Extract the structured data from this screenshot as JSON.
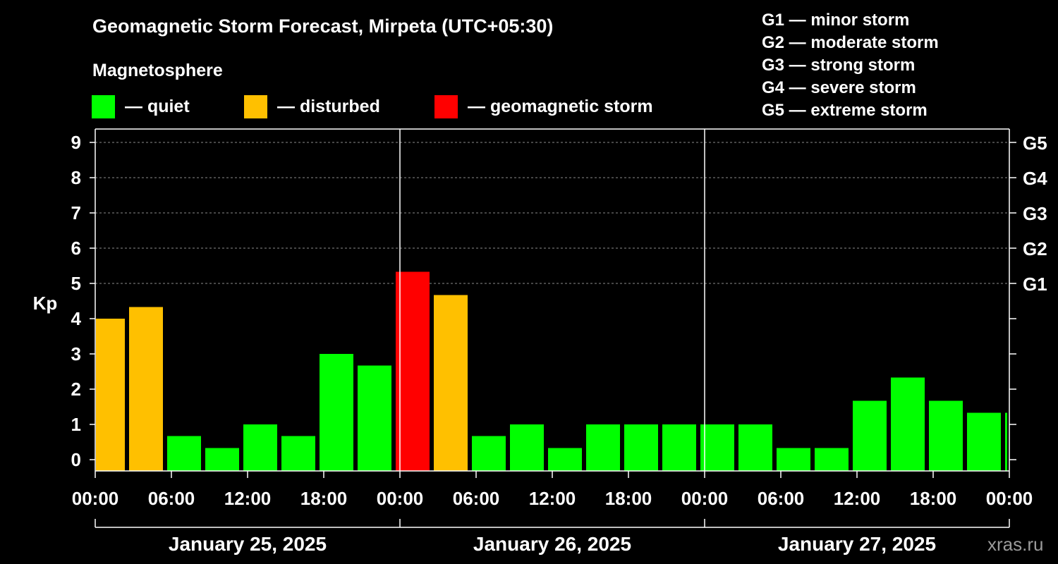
{
  "title": "Geomagnetic Storm Forecast, Mirpeta (UTC+05:30)",
  "magnetosphere_legend": {
    "title": "Magnetosphere",
    "items": [
      {
        "label": "— quiet",
        "color": "#00ff00"
      },
      {
        "label": "— disturbed",
        "color": "#ffc000"
      },
      {
        "label": "— geomagnetic storm",
        "color": "#ff0000"
      }
    ]
  },
  "g_legend": [
    "G1 — minor storm",
    "G2 — moderate storm",
    "G3 — strong storm",
    "G4 — severe storm",
    "G5 — extreme storm"
  ],
  "watermark": "xras.ru",
  "chart_data": {
    "type": "bar",
    "ylabel": "Kp",
    "ylim": [
      0,
      9
    ],
    "yticks": [
      0,
      1,
      2,
      3,
      4,
      5,
      6,
      7,
      8,
      9
    ],
    "right_axis_labels": [
      {
        "kp": 5,
        "label": "G1"
      },
      {
        "kp": 6,
        "label": "G2"
      },
      {
        "kp": 7,
        "label": "G3"
      },
      {
        "kp": 8,
        "label": "G4"
      },
      {
        "kp": 9,
        "label": "G5"
      }
    ],
    "grid": "dashed horizontal at Kp 5-9",
    "x_tick_labels": [
      "00:00",
      "06:00",
      "12:00",
      "18:00",
      "00:00",
      "06:00",
      "12:00",
      "18:00",
      "00:00",
      "06:00",
      "12:00",
      "18:00",
      "00:00"
    ],
    "days": [
      "January 25, 2025",
      "January 26, 2025",
      "January 27, 2025"
    ],
    "time_start": "2025-01-25 00:00",
    "time_end": "2025-01-28 00:00",
    "bar_interval_hours": 3,
    "bars": [
      {
        "time": "2025-01-24 23:30",
        "kp": 4.0,
        "status": "disturbed"
      },
      {
        "time": "2025-01-25 02:30",
        "kp": 4.33,
        "status": "disturbed"
      },
      {
        "time": "2025-01-25 05:30",
        "kp": 0.67,
        "status": "quiet"
      },
      {
        "time": "2025-01-25 08:30",
        "kp": 0.33,
        "status": "quiet"
      },
      {
        "time": "2025-01-25 11:30",
        "kp": 1.0,
        "status": "quiet"
      },
      {
        "time": "2025-01-25 14:30",
        "kp": 0.67,
        "status": "quiet"
      },
      {
        "time": "2025-01-25 17:30",
        "kp": 3.0,
        "status": "quiet"
      },
      {
        "time": "2025-01-25 20:30",
        "kp": 2.67,
        "status": "quiet"
      },
      {
        "time": "2025-01-25 23:30",
        "kp": 5.33,
        "status": "storm"
      },
      {
        "time": "2025-01-26 02:30",
        "kp": 4.67,
        "status": "disturbed"
      },
      {
        "time": "2025-01-26 05:30",
        "kp": 0.67,
        "status": "quiet"
      },
      {
        "time": "2025-01-26 08:30",
        "kp": 1.0,
        "status": "quiet"
      },
      {
        "time": "2025-01-26 11:30",
        "kp": 0.33,
        "status": "quiet"
      },
      {
        "time": "2025-01-26 14:30",
        "kp": 1.0,
        "status": "quiet"
      },
      {
        "time": "2025-01-26 17:30",
        "kp": 1.0,
        "status": "quiet"
      },
      {
        "time": "2025-01-26 20:30",
        "kp": 1.0,
        "status": "quiet"
      },
      {
        "time": "2025-01-26 23:30",
        "kp": 1.0,
        "status": "quiet"
      },
      {
        "time": "2025-01-27 02:30",
        "kp": 1.0,
        "status": "quiet"
      },
      {
        "time": "2025-01-27 05:30",
        "kp": 0.33,
        "status": "quiet"
      },
      {
        "time": "2025-01-27 08:30",
        "kp": 0.33,
        "status": "quiet"
      },
      {
        "time": "2025-01-27 11:30",
        "kp": 1.67,
        "status": "quiet"
      },
      {
        "time": "2025-01-27 14:30",
        "kp": 2.33,
        "status": "quiet"
      },
      {
        "time": "2025-01-27 17:30",
        "kp": 1.67,
        "status": "quiet"
      },
      {
        "time": "2025-01-27 20:30",
        "kp": 1.33,
        "status": "quiet"
      },
      {
        "time": "2025-01-27 23:30",
        "kp": 1.33,
        "status": "quiet"
      }
    ]
  }
}
